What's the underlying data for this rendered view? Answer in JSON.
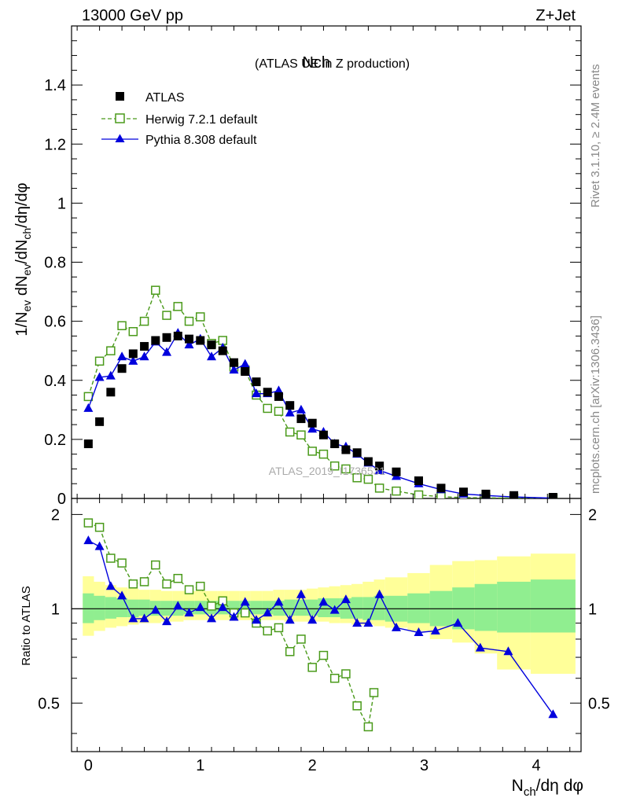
{
  "header": {
    "energy": "13000 GeV pp",
    "process": "Z+Jet"
  },
  "side": {
    "rivet": "Rivet 3.1.10, ≥ 2.4M events",
    "mcplots": "mcplots.cern.ch [arXiv:1306.3436]"
  },
  "watermark": "ATLAS_2019_I1736531",
  "colors": {
    "atlas": "#000000",
    "herwig": "#4a9a1a",
    "pythia": "#0000dd",
    "band_stat": "#90ee90",
    "band_total": "#ffff99"
  },
  "chart_data": [
    {
      "type": "scatter",
      "title": "Nch",
      "subtitle": "(ATLAS UE in Z production)",
      "xlabel": "N_ch/dη dφ",
      "ylabel": "1/N_ev dN_ev/dN_ch/dη/dφ",
      "xlim": [
        -0.15,
        4.4
      ],
      "ylim": [
        0,
        1.6
      ],
      "yticks": [
        0.2,
        0.4,
        0.6,
        0.8,
        1,
        1.2,
        1.4
      ],
      "ytick_labels": [
        "0.2",
        "0.4",
        "0.6",
        "0.8",
        "1",
        "1.2",
        "1.4"
      ],
      "legend_position": "top-left",
      "legend": [
        "ATLAS",
        "Herwig 7.2.1 default",
        "Pythia 8.308 default"
      ],
      "series": [
        {
          "name": "ATLAS",
          "marker": "square-filled",
          "x": [
            0,
            0.1,
            0.2,
            0.3,
            0.4,
            0.5,
            0.6,
            0.7,
            0.8,
            0.9,
            1.0,
            1.1,
            1.2,
            1.3,
            1.4,
            1.5,
            1.6,
            1.7,
            1.8,
            1.9,
            2.0,
            2.1,
            2.2,
            2.3,
            2.4,
            2.5,
            2.6,
            2.75,
            2.95,
            3.15,
            3.35,
            3.55,
            3.8,
            4.15
          ],
          "values": [
            0.185,
            0.26,
            0.36,
            0.44,
            0.49,
            0.515,
            0.535,
            0.545,
            0.55,
            0.54,
            0.535,
            0.52,
            0.5,
            0.46,
            0.43,
            0.395,
            0.36,
            0.345,
            0.315,
            0.27,
            0.255,
            0.215,
            0.185,
            0.165,
            0.155,
            0.125,
            0.11,
            0.09,
            0.06,
            0.035,
            0.022,
            0.015,
            0.01,
            0.004
          ]
        },
        {
          "name": "Herwig 7.2.1 default",
          "marker": "square-open",
          "line": "dashed",
          "x": [
            0,
            0.1,
            0.2,
            0.3,
            0.4,
            0.5,
            0.6,
            0.7,
            0.8,
            0.9,
            1.0,
            1.1,
            1.2,
            1.3,
            1.4,
            1.5,
            1.6,
            1.7,
            1.8,
            1.9,
            2.0,
            2.1,
            2.2,
            2.3,
            2.4,
            2.5,
            2.6,
            2.75,
            2.95,
            3.15,
            3.35,
            3.55,
            3.8,
            4.15
          ],
          "values": [
            0.345,
            0.465,
            0.5,
            0.585,
            0.565,
            0.6,
            0.705,
            0.62,
            0.65,
            0.6,
            0.615,
            0.525,
            0.535,
            0.445,
            0.435,
            0.35,
            0.305,
            0.295,
            0.225,
            0.215,
            0.16,
            0.15,
            0.11,
            0.1,
            0.07,
            0.065,
            0.035,
            0.025,
            0.012,
            0.006,
            0.003,
            0.002,
            0.001,
            0.0005
          ]
        },
        {
          "name": "Pythia 8.308 default",
          "marker": "triangle-filled",
          "line": "solid",
          "x": [
            0,
            0.1,
            0.2,
            0.3,
            0.4,
            0.5,
            0.6,
            0.7,
            0.8,
            0.9,
            1.0,
            1.1,
            1.2,
            1.3,
            1.4,
            1.5,
            1.6,
            1.7,
            1.8,
            1.9,
            2.0,
            2.1,
            2.2,
            2.3,
            2.4,
            2.5,
            2.6,
            2.75,
            2.95,
            3.15,
            3.35,
            3.55,
            3.8,
            4.15
          ],
          "values": [
            0.305,
            0.41,
            0.415,
            0.48,
            0.465,
            0.48,
            0.53,
            0.495,
            0.56,
            0.52,
            0.54,
            0.48,
            0.51,
            0.435,
            0.455,
            0.355,
            0.355,
            0.365,
            0.29,
            0.3,
            0.235,
            0.225,
            0.185,
            0.175,
            0.15,
            0.12,
            0.095,
            0.075,
            0.05,
            0.03,
            0.015,
            0.01,
            0.005,
            0.001
          ]
        }
      ]
    },
    {
      "type": "line",
      "ylabel": "Ratio to ATLAS",
      "xlabel": "N_ch/dη dφ",
      "xlim": [
        -0.15,
        4.4
      ],
      "ylim": [
        0.35,
        2.25
      ],
      "xticks": [
        0,
        1,
        2,
        3,
        4
      ],
      "xtick_labels": [
        "0",
        "1",
        "2",
        "3",
        "4"
      ],
      "yticks": [
        0.5,
        1,
        2
      ],
      "ytick_labels": [
        "0.5",
        "1",
        "2"
      ],
      "bands": {
        "x_edges": [
          -0.05,
          0.05,
          0.15,
          0.25,
          0.35,
          0.45,
          0.55,
          0.65,
          0.75,
          0.85,
          0.95,
          1.05,
          1.15,
          1.25,
          1.35,
          1.45,
          1.55,
          1.65,
          1.75,
          1.85,
          1.95,
          2.05,
          2.15,
          2.25,
          2.35,
          2.45,
          2.55,
          2.65,
          2.85,
          3.05,
          3.25,
          3.45,
          3.65,
          3.95,
          4.35
        ],
        "stat_low": [
          0.9,
          0.92,
          0.93,
          0.94,
          0.94,
          0.95,
          0.95,
          0.95,
          0.95,
          0.96,
          0.96,
          0.96,
          0.96,
          0.96,
          0.96,
          0.96,
          0.96,
          0.95,
          0.95,
          0.95,
          0.95,
          0.94,
          0.94,
          0.93,
          0.93,
          0.92,
          0.92,
          0.91,
          0.9,
          0.88,
          0.86,
          0.85,
          0.84,
          0.84
        ],
        "stat_high": [
          1.12,
          1.1,
          1.09,
          1.08,
          1.07,
          1.07,
          1.06,
          1.06,
          1.06,
          1.06,
          1.06,
          1.06,
          1.06,
          1.06,
          1.06,
          1.06,
          1.06,
          1.06,
          1.07,
          1.07,
          1.07,
          1.08,
          1.08,
          1.08,
          1.09,
          1.09,
          1.1,
          1.1,
          1.12,
          1.14,
          1.17,
          1.2,
          1.22,
          1.24
        ],
        "total_low": [
          0.82,
          0.85,
          0.87,
          0.88,
          0.89,
          0.9,
          0.9,
          0.91,
          0.91,
          0.92,
          0.92,
          0.92,
          0.92,
          0.92,
          0.92,
          0.92,
          0.92,
          0.92,
          0.91,
          0.91,
          0.91,
          0.91,
          0.9,
          0.9,
          0.89,
          0.89,
          0.88,
          0.87,
          0.85,
          0.8,
          0.78,
          0.72,
          0.64,
          0.62
        ],
        "total_high": [
          1.27,
          1.22,
          1.19,
          1.17,
          1.16,
          1.15,
          1.15,
          1.14,
          1.14,
          1.14,
          1.14,
          1.14,
          1.14,
          1.14,
          1.14,
          1.14,
          1.14,
          1.15,
          1.15,
          1.15,
          1.16,
          1.17,
          1.18,
          1.19,
          1.2,
          1.22,
          1.24,
          1.26,
          1.3,
          1.38,
          1.42,
          1.43,
          1.47,
          1.5
        ]
      },
      "series": [
        {
          "name": "Herwig 7.2.1 default",
          "marker": "square-open",
          "line": "dashed",
          "x": [
            0,
            0.1,
            0.2,
            0.3,
            0.4,
            0.5,
            0.6,
            0.7,
            0.8,
            0.9,
            1.0,
            1.1,
            1.2,
            1.3,
            1.4,
            1.5,
            1.6,
            1.7,
            1.8,
            1.9,
            2.0,
            2.1,
            2.2,
            2.3,
            2.4,
            2.5,
            2.55
          ],
          "values": [
            1.88,
            1.82,
            1.45,
            1.4,
            1.2,
            1.22,
            1.38,
            1.2,
            1.25,
            1.15,
            1.18,
            1.02,
            1.06,
            0.97,
            0.97,
            0.9,
            0.85,
            0.87,
            0.73,
            0.8,
            0.65,
            0.71,
            0.6,
            0.62,
            0.49,
            0.42,
            0.54
          ]
        },
        {
          "name": "Pythia 8.308 default",
          "marker": "triangle-filled",
          "line": "solid",
          "x": [
            0,
            0.1,
            0.2,
            0.3,
            0.4,
            0.5,
            0.6,
            0.7,
            0.8,
            0.9,
            1.0,
            1.1,
            1.2,
            1.3,
            1.4,
            1.5,
            1.6,
            1.7,
            1.8,
            1.9,
            2.0,
            2.1,
            2.2,
            2.3,
            2.4,
            2.5,
            2.6,
            2.75,
            2.95,
            3.1,
            3.3,
            3.5,
            3.75,
            4.15
          ],
          "values": [
            1.65,
            1.58,
            1.18,
            1.1,
            0.93,
            0.93,
            0.99,
            0.91,
            1.02,
            0.97,
            1.01,
            0.93,
            1.01,
            0.94,
            1.05,
            0.92,
            0.97,
            1.05,
            0.92,
            1.11,
            0.92,
            1.05,
            0.99,
            1.07,
            0.9,
            0.9,
            1.11,
            0.87,
            0.84,
            0.85,
            0.9,
            0.75,
            0.73,
            0.46
          ]
        }
      ]
    }
  ]
}
